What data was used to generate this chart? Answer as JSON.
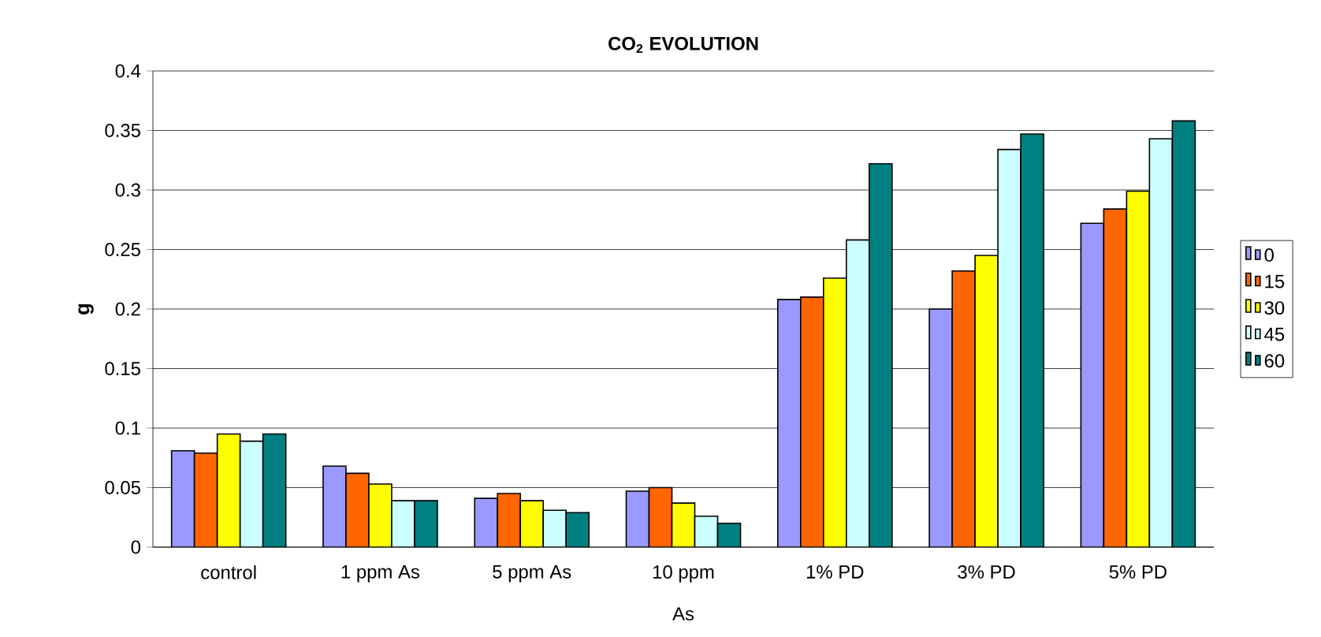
{
  "chart_data": {
    "type": "bar",
    "title": "CO$_{2}$ EVOLUTION",
    "xlabel": "As",
    "ylabel": "g",
    "categories": [
      "control",
      "1 ppm As",
      "5 ppm As",
      "10 ppm",
      "1% PD",
      "3% PD",
      "5% PD"
    ],
    "series": [
      {
        "name": "0",
        "color": "#9999ff",
        "values": [
          0.081,
          0.068,
          0.041,
          0.047,
          0.208,
          0.2,
          0.272
        ]
      },
      {
        "name": "15",
        "color": "#ff6600",
        "values": [
          0.079,
          0.062,
          0.045,
          0.05,
          0.21,
          0.232,
          0.284
        ]
      },
      {
        "name": "30",
        "color": "#ffff00",
        "values": [
          0.095,
          0.053,
          0.039,
          0.037,
          0.226,
          0.245,
          0.299
        ]
      },
      {
        "name": "45",
        "color": "#ccffff",
        "values": [
          0.089,
          0.039,
          0.031,
          0.026,
          0.258,
          0.334,
          0.343
        ]
      },
      {
        "name": "60",
        "color": "#008080",
        "values": [
          0.095,
          0.039,
          0.029,
          0.02,
          0.322,
          0.347,
          0.358
        ]
      }
    ],
    "ylim": [
      0,
      0.4
    ],
    "yticks": [
      0,
      0.05,
      0.1,
      0.15,
      0.2,
      0.25,
      0.3,
      0.35,
      0.4
    ],
    "grid": "y",
    "legend": "right"
  }
}
